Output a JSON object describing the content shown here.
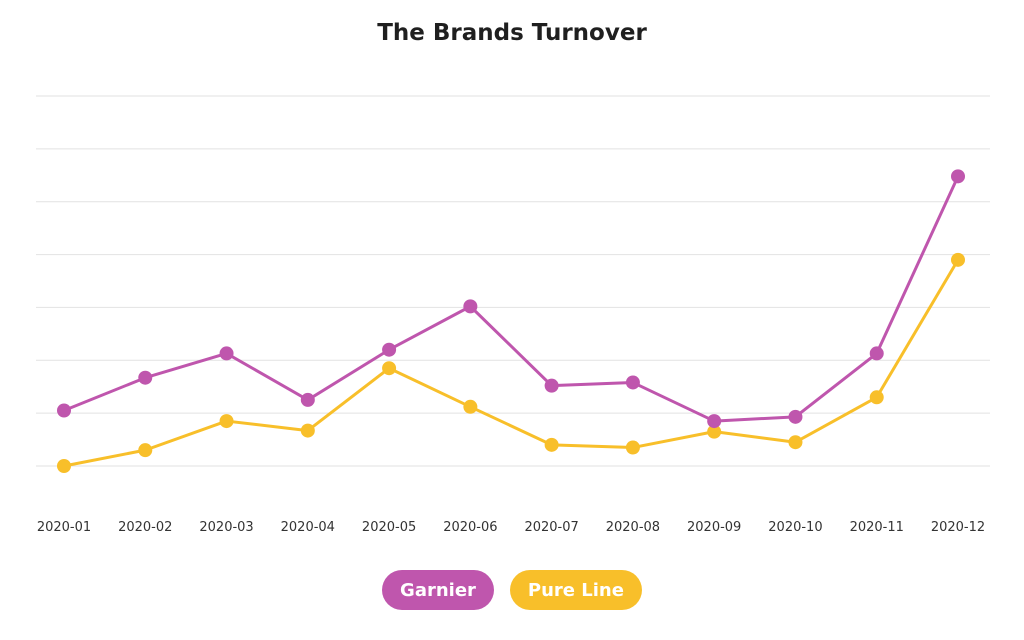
{
  "colors": {
    "garnier": "#bf56ad",
    "pure_line": "#f8bf2a",
    "grid": "#e2e2e2",
    "tick_text": "#333333"
  },
  "chart_data": {
    "type": "line",
    "title": "The Brands Turnover",
    "xlabel": "",
    "ylabel": "",
    "categories": [
      "2020-01",
      "2020-02",
      "2020-03",
      "2020-04",
      "2020-05",
      "2020-06",
      "2020-07",
      "2020-08",
      "2020-09",
      "2020-10",
      "2020-11",
      "2020-12"
    ],
    "ylim": [
      0,
      7
    ],
    "grid": true,
    "legend_position": "bottom-center",
    "series": [
      {
        "name": "Garnier",
        "color_key": "garnier",
        "values": [
          1.05,
          1.67,
          2.13,
          1.25,
          2.2,
          3.02,
          1.52,
          1.58,
          0.85,
          0.93,
          2.13,
          5.48
        ]
      },
      {
        "name": "Pure Line",
        "color_key": "pure_line",
        "values": [
          0.0,
          0.3,
          0.85,
          0.67,
          1.85,
          1.12,
          0.4,
          0.35,
          0.65,
          0.45,
          1.3,
          3.9
        ]
      }
    ]
  }
}
